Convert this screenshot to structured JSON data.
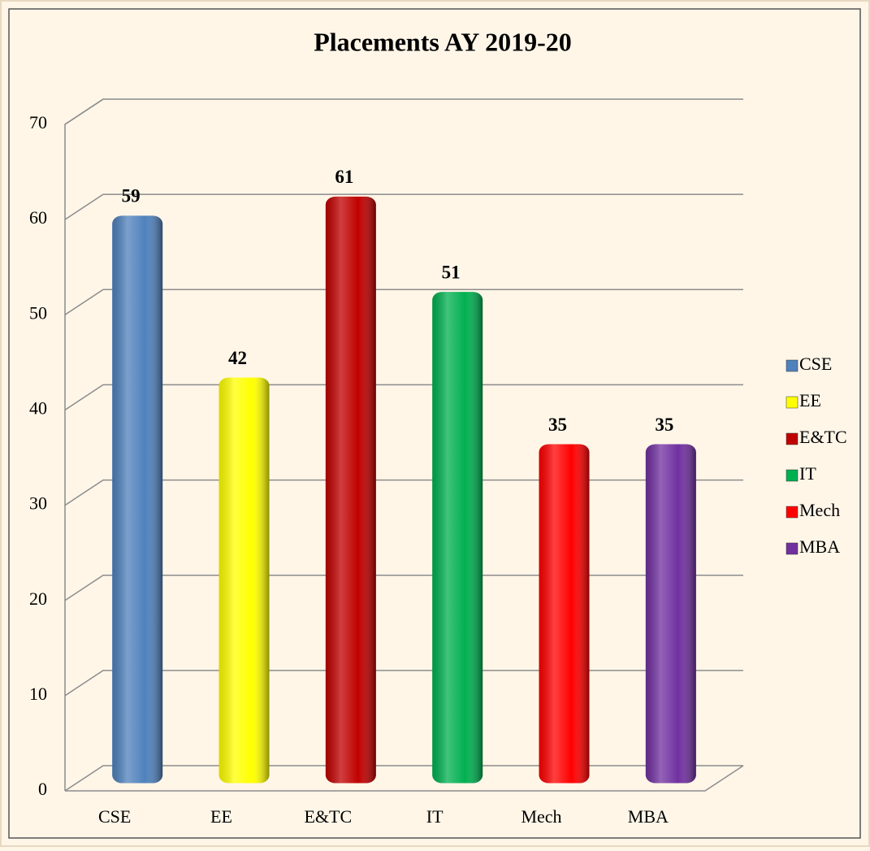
{
  "chart_data": {
    "type": "bar",
    "title": "Placements AY 2019-20",
    "categories": [
      "CSE",
      "EE",
      "E&TC",
      "IT",
      "Mech",
      "MBA"
    ],
    "values": [
      59,
      42,
      61,
      51,
      35,
      35
    ],
    "colors": [
      "#4f81bd",
      "#ffff00",
      "#c00000",
      "#00b050",
      "#ff0000",
      "#7030a0"
    ],
    "ylim": [
      0,
      70
    ],
    "yticks": [
      0,
      10,
      20,
      30,
      40,
      50,
      60,
      70
    ],
    "grid": true,
    "legend": "right"
  }
}
